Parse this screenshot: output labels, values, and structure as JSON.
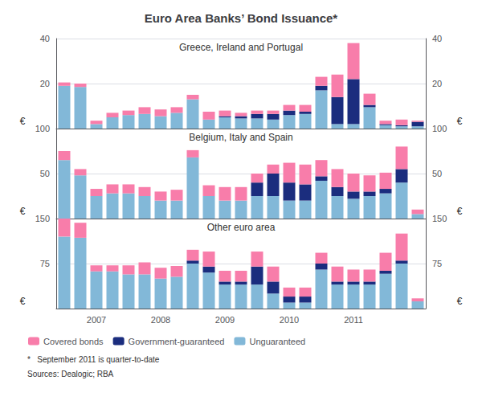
{
  "title": "Euro Area Banks’ Bond Issuance*",
  "legend": "lower left",
  "annotations": [
    "*   September 2011 is quarter-to-date",
    "Sources: Dealogic; RBA"
  ],
  "chart_data": [
    {
      "type": "bar",
      "title": "Greece, Ireland and Portugal",
      "stacked": true,
      "grid": true,
      "tick_labels": "y",
      "annotations": [
        "€",
        "€"
      ],
      "categories": [
        null,
        null,
        "2007",
        null,
        null,
        null,
        "2008",
        null,
        null,
        null,
        "2009",
        null,
        null,
        null,
        "2010",
        null,
        null,
        null,
        "2011",
        null,
        null,
        null,
        null
      ],
      "ylim": [
        0,
        40
      ],
      "yticks": [
        20,
        40
      ],
      "y2lim": [
        0,
        40
      ],
      "y2ticks": [
        20,
        40
      ],
      "series": [
        {
          "name": "Unguaranteed",
          "color": "#82B8D8",
          "values": [
            19.0,
            18.5,
            2.0,
            5.0,
            6.0,
            6.5,
            5.5,
            7.0,
            13.0,
            4.0,
            5.0,
            4.5,
            4.5,
            4.0,
            6.0,
            6.5,
            17.0,
            2.0,
            2.0,
            9.5,
            1.5,
            1.0,
            1.0
          ]
        },
        {
          "name": "Government-guaranteed",
          "color": "#1B2D7E",
          "values": [
            0.0,
            0.0,
            0.0,
            0.0,
            0.0,
            0.0,
            0.0,
            0.0,
            0.0,
            0.0,
            0.5,
            1.0,
            2.0,
            2.5,
            2.0,
            1.0,
            2.0,
            12.0,
            20.0,
            1.0,
            0.5,
            0.5,
            2.0
          ]
        },
        {
          "name": "Covered bonds",
          "color": "#F87DAA",
          "values": [
            1.5,
            1.5,
            1.5,
            2.0,
            2.0,
            3.0,
            3.0,
            2.5,
            2.0,
            3.5,
            2.5,
            1.5,
            1.5,
            1.5,
            2.5,
            3.0,
            4.0,
            10.0,
            16.0,
            5.0,
            1.5,
            2.5,
            0.5
          ]
        }
      ]
    },
    {
      "type": "bar",
      "title": "Belgium, Italy and Spain",
      "stacked": true,
      "grid": true,
      "tick_labels": "y",
      "annotations": [
        "€",
        "€"
      ],
      "categories": [
        null,
        null,
        "2007",
        null,
        null,
        null,
        "2008",
        null,
        null,
        null,
        "2009",
        null,
        null,
        null,
        "2010",
        null,
        null,
        null,
        "2011",
        null,
        null,
        null,
        null
      ],
      "ylim": [
        0,
        100
      ],
      "yticks": [
        50,
        100
      ],
      "y2lim": [
        0,
        100
      ],
      "y2ticks": [
        50,
        100
      ],
      "series": [
        {
          "name": "Unguaranteed",
          "color": "#82B8D8",
          "values": [
            65.0,
            48.0,
            25.0,
            28.0,
            28.0,
            25.0,
            20.0,
            20.0,
            68.0,
            25.0,
            20.0,
            20.0,
            25.0,
            25.0,
            20.0,
            20.0,
            42.0,
            25.0,
            22.0,
            25.0,
            28.0,
            40.0,
            5.0
          ]
        },
        {
          "name": "Government-guaranteed",
          "color": "#1B2D7E",
          "values": [
            0.0,
            0.0,
            0.0,
            0.0,
            0.0,
            0.0,
            0.0,
            0.0,
            0.0,
            0.0,
            0.0,
            0.0,
            15.0,
            25.0,
            20.0,
            18.0,
            5.0,
            10.0,
            8.0,
            5.0,
            5.0,
            15.0,
            0.0
          ]
        },
        {
          "name": "Covered bonds",
          "color": "#F87DAA",
          "values": [
            10.0,
            7.0,
            8.0,
            10.0,
            10.0,
            10.0,
            10.0,
            12.0,
            8.0,
            12.0,
            15.0,
            15.0,
            10.0,
            10.0,
            22.0,
            22.0,
            18.0,
            20.0,
            20.0,
            18.0,
            18.0,
            25.0,
            5.0
          ]
        }
      ]
    },
    {
      "type": "bar",
      "title": "Other euro area",
      "stacked": true,
      "grid": true,
      "annotations": [
        "€",
        "€"
      ],
      "categories": [
        null,
        null,
        "2007",
        null,
        null,
        null,
        "2008",
        null,
        null,
        null,
        "2009",
        null,
        null,
        null,
        "2010",
        null,
        null,
        null,
        "2011",
        null,
        null,
        null,
        null
      ],
      "ylim": [
        0,
        150
      ],
      "yticks": [
        75,
        150
      ],
      "y2lim": [
        0,
        150
      ],
      "y2ticks": [
        75,
        150
      ],
      "series": [
        {
          "name": "Unguaranteed",
          "color": "#82B8D8",
          "values": [
            120.0,
            118.0,
            62.0,
            62.0,
            57.0,
            57.0,
            50.0,
            53.0,
            75.0,
            60.0,
            40.0,
            40.0,
            40.0,
            25.0,
            10.0,
            10.0,
            65.0,
            40.0,
            40.0,
            40.0,
            58.0,
            75.0,
            12.0
          ]
        },
        {
          "name": "Government-guaranteed",
          "color": "#1B2D7E",
          "values": [
            0.0,
            0.0,
            0.0,
            0.0,
            0.0,
            0.0,
            0.0,
            0.0,
            5.0,
            10.0,
            5.0,
            5.0,
            30.0,
            20.0,
            10.0,
            10.0,
            10.0,
            5.0,
            5.0,
            5.0,
            5.0,
            5.0,
            0.0
          ]
        },
        {
          "name": "Covered bonds",
          "color": "#F87DAA",
          "values": [
            30.0,
            25.0,
            10.0,
            10.0,
            15.0,
            20.0,
            18.0,
            18.0,
            18.0,
            25.0,
            18.0,
            18.0,
            25.0,
            25.0,
            15.0,
            15.0,
            18.0,
            25.0,
            20.0,
            20.0,
            30.0,
            45.0,
            5.0
          ]
        }
      ]
    }
  ]
}
